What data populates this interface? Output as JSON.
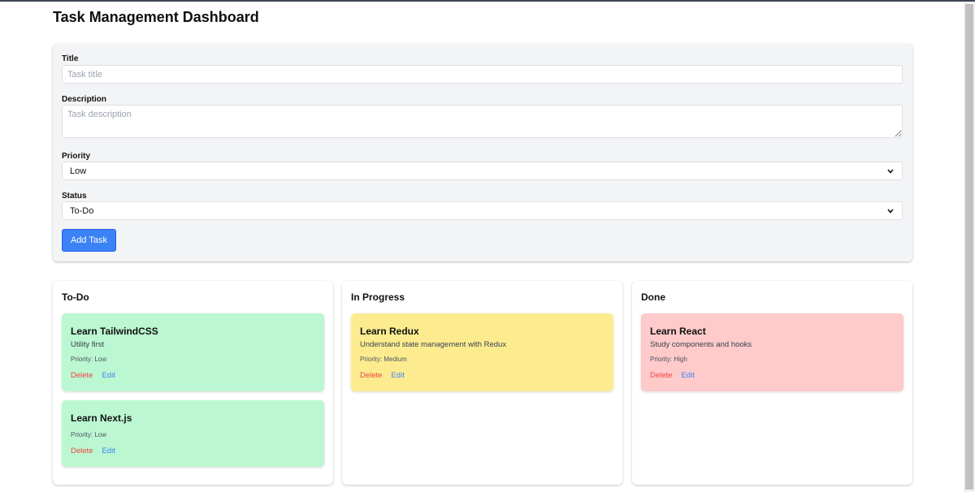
{
  "page_title": "Task Management Dashboard",
  "form": {
    "title_label": "Title",
    "title_placeholder": "Task title",
    "description_label": "Description",
    "description_placeholder": "Task description",
    "priority_label": "Priority",
    "priority_value": "Low",
    "status_label": "Status",
    "status_value": "To-Do",
    "submit_label": "Add Task"
  },
  "columns": [
    {
      "title": "To-Do",
      "tasks": [
        {
          "title": "Learn TailwindCSS",
          "description": "Utility first",
          "priority": "Priority: Low",
          "delete_label": "Delete",
          "edit_label": "Edit",
          "color": "#bbf7d0"
        },
        {
          "title": "Learn Next.js",
          "description": "",
          "priority": "Priority: Low",
          "delete_label": "Delete",
          "edit_label": "Edit",
          "color": "#bbf7d0"
        }
      ]
    },
    {
      "title": "In Progress",
      "tasks": [
        {
          "title": "Learn Redux",
          "description": "Understand state management with Redux",
          "priority": "Priority: Medium",
          "delete_label": "Delete",
          "edit_label": "Edit",
          "color": "#fdec8f"
        }
      ]
    },
    {
      "title": "Done",
      "tasks": [
        {
          "title": "Learn React",
          "description": "Study components and hooks",
          "priority": "Priority: High",
          "delete_label": "Delete",
          "edit_label": "Edit",
          "color": "#fecaca"
        }
      ]
    }
  ],
  "colors": {
    "primary_button": "#3b82f6",
    "delete_text": "#ef4444",
    "edit_text": "#3b82f6",
    "form_background": "#f3f4f6"
  }
}
